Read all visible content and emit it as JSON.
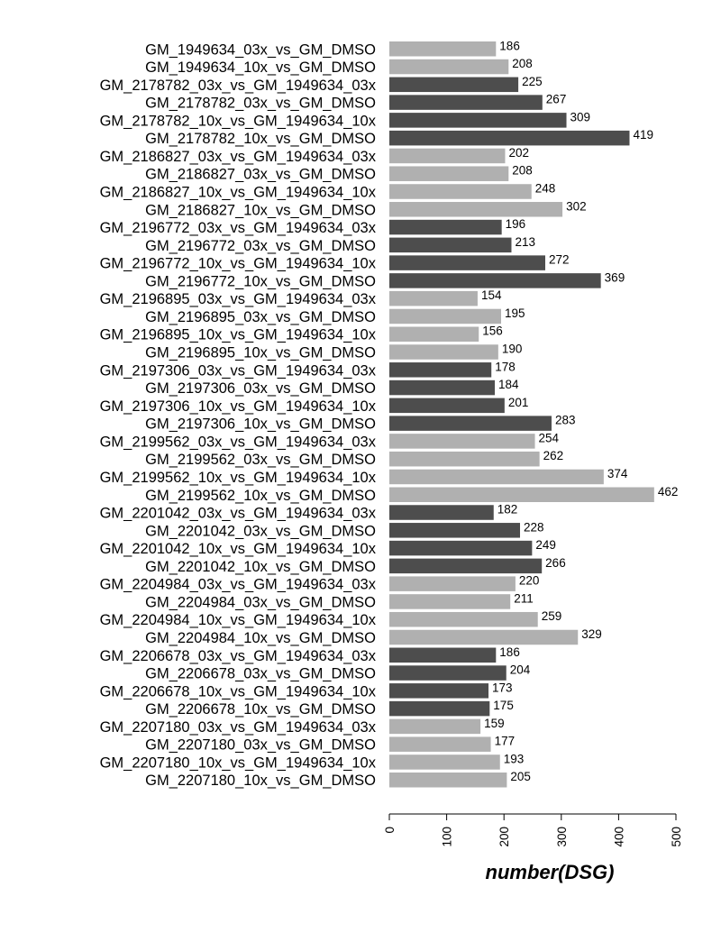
{
  "chart_data": {
    "type": "bar",
    "orientation": "horizontal",
    "xlabel": "number(DSG)",
    "ylabel": "",
    "xlim": [
      0,
      500
    ],
    "xticks": [
      "0",
      "100",
      "200",
      "300",
      "400",
      "500"
    ],
    "grid": false,
    "colors": {
      "light": "#b0b0b0",
      "dark": "#4d4d4d"
    },
    "categories": [
      "GM_1949634_03x_vs_GM_DMSO",
      "GM_1949634_10x_vs_GM_DMSO",
      "GM_2178782_03x_vs_GM_1949634_03x",
      "GM_2178782_03x_vs_GM_DMSO",
      "GM_2178782_10x_vs_GM_1949634_10x",
      "GM_2178782_10x_vs_GM_DMSO",
      "GM_2186827_03x_vs_GM_1949634_03x",
      "GM_2186827_03x_vs_GM_DMSO",
      "GM_2186827_10x_vs_GM_1949634_10x",
      "GM_2186827_10x_vs_GM_DMSO",
      "GM_2196772_03x_vs_GM_1949634_03x",
      "GM_2196772_03x_vs_GM_DMSO",
      "GM_2196772_10x_vs_GM_1949634_10x",
      "GM_2196772_10x_vs_GM_DMSO",
      "GM_2196895_03x_vs_GM_1949634_03x",
      "GM_2196895_03x_vs_GM_DMSO",
      "GM_2196895_10x_vs_GM_1949634_10x",
      "GM_2196895_10x_vs_GM_DMSO",
      "GM_2197306_03x_vs_GM_1949634_03x",
      "GM_2197306_03x_vs_GM_DMSO",
      "GM_2197306_10x_vs_GM_1949634_10x",
      "GM_2197306_10x_vs_GM_DMSO",
      "GM_2199562_03x_vs_GM_1949634_03x",
      "GM_2199562_03x_vs_GM_DMSO",
      "GM_2199562_10x_vs_GM_1949634_10x",
      "GM_2199562_10x_vs_GM_DMSO",
      "GM_2201042_03x_vs_GM_1949634_03x",
      "GM_2201042_03x_vs_GM_DMSO",
      "GM_2201042_10x_vs_GM_1949634_10x",
      "GM_2201042_10x_vs_GM_DMSO",
      "GM_2204984_03x_vs_GM_1949634_03x",
      "GM_2204984_03x_vs_GM_DMSO",
      "GM_2204984_10x_vs_GM_1949634_10x",
      "GM_2204984_10x_vs_GM_DMSO",
      "GM_2206678_03x_vs_GM_1949634_03x",
      "GM_2206678_03x_vs_GM_DMSO",
      "GM_2206678_10x_vs_GM_1949634_10x",
      "GM_2206678_10x_vs_GM_DMSO",
      "GM_2207180_03x_vs_GM_1949634_03x",
      "GM_2207180_03x_vs_GM_DMSO",
      "GM_2207180_10x_vs_GM_1949634_10x",
      "GM_2207180_10x_vs_GM_DMSO"
    ],
    "values": [
      186,
      208,
      225,
      267,
      309,
      419,
      202,
      208,
      248,
      302,
      196,
      213,
      272,
      369,
      154,
      195,
      156,
      190,
      178,
      184,
      201,
      283,
      254,
      262,
      374,
      462,
      182,
      228,
      249,
      266,
      220,
      211,
      259,
      329,
      186,
      204,
      173,
      175,
      159,
      177,
      193,
      205
    ],
    "bar_shades": [
      "light",
      "light",
      "dark",
      "dark",
      "dark",
      "dark",
      "light",
      "light",
      "light",
      "light",
      "dark",
      "dark",
      "dark",
      "dark",
      "light",
      "light",
      "light",
      "light",
      "dark",
      "dark",
      "dark",
      "dark",
      "light",
      "light",
      "light",
      "light",
      "dark",
      "dark",
      "dark",
      "dark",
      "light",
      "light",
      "light",
      "light",
      "dark",
      "dark",
      "dark",
      "dark",
      "light",
      "light",
      "light",
      "light"
    ]
  }
}
